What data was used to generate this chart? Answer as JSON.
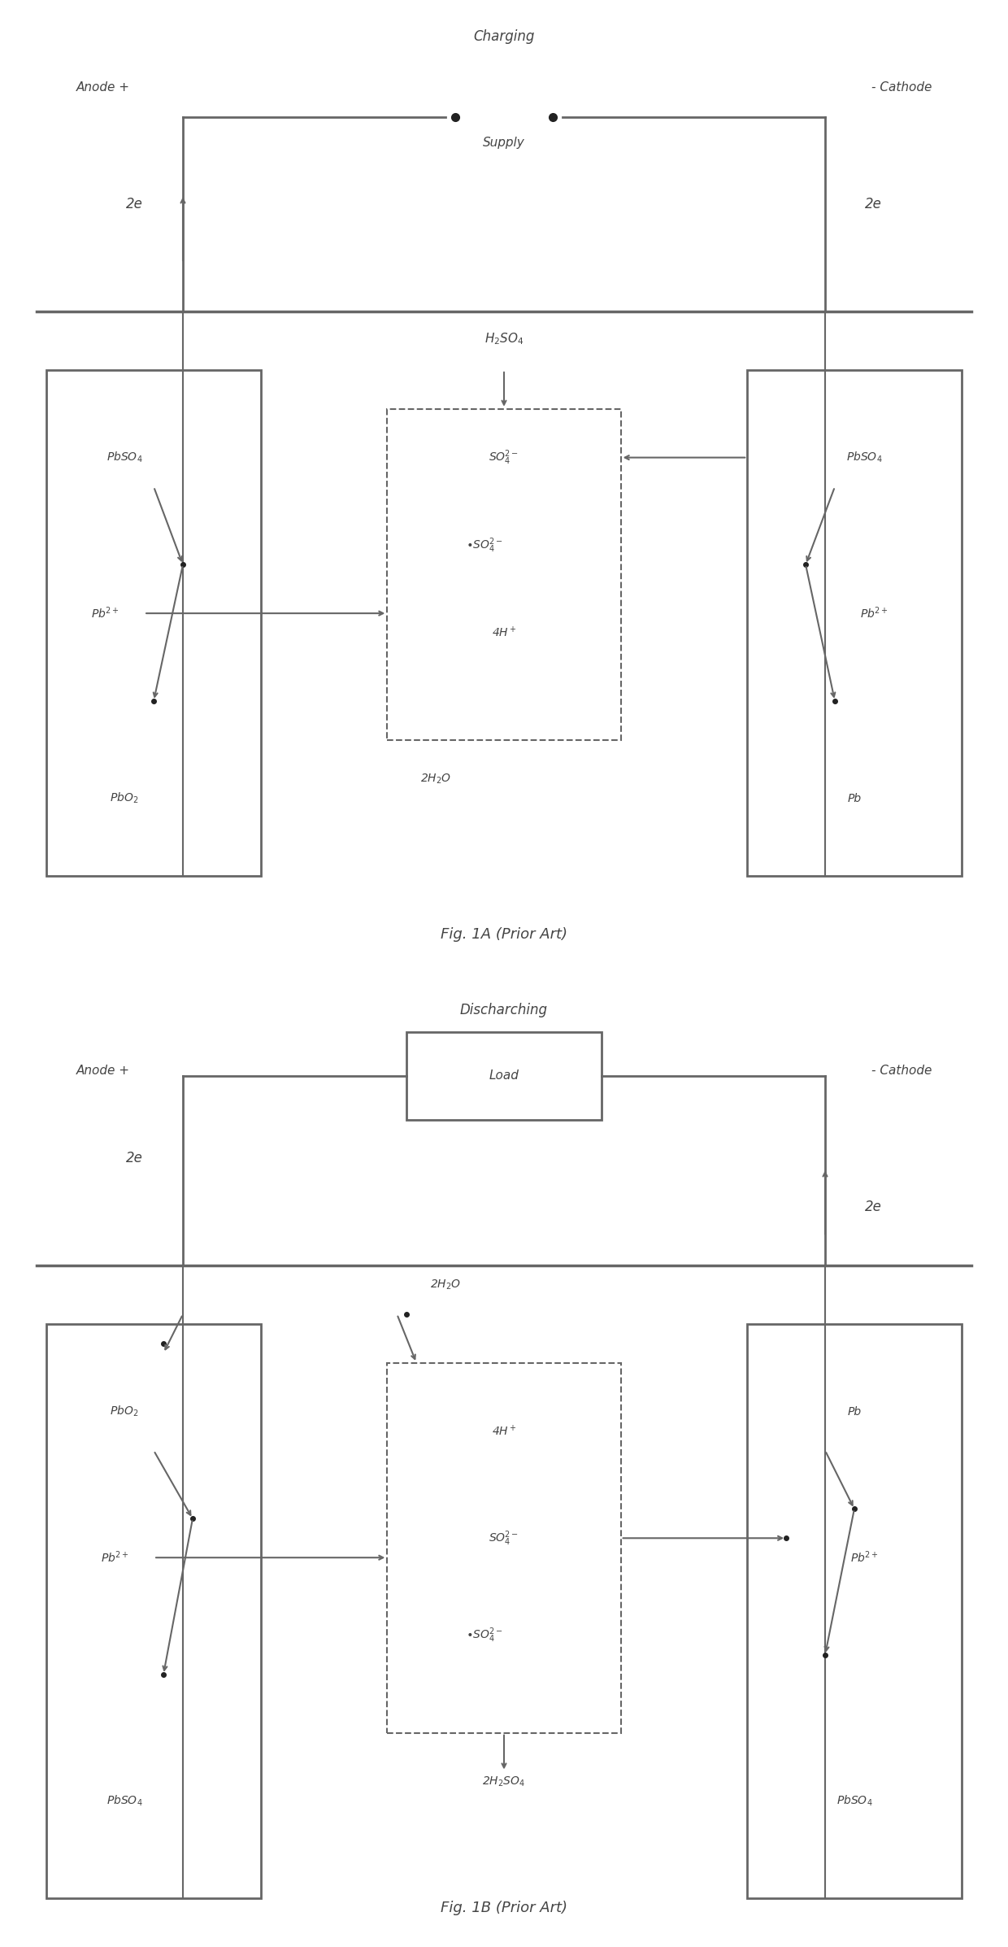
{
  "fig_width": 12.4,
  "fig_height": 23.94,
  "bg_color": "#ffffff",
  "line_color": "#666666",
  "text_color": "#444444",
  "fig1A": {
    "title": "Charging",
    "label_left": "Anode +",
    "label_right": "- Cathode",
    "supply_label": "Supply",
    "electrons_left": "2e",
    "electrons_right": "2e",
    "h2so4_label": "H₂SO₄",
    "so4_1": "SO₄²⁻",
    "so4_2": "•SO₄²⁻",
    "h4": "4H⁺",
    "h2o": "2H₂O",
    "left_1": "PbSO₄",
    "left_2": "Pb²⁺",
    "left_3": "PbO₂",
    "right_1": "PbSO₄",
    "right_2": "Pb²⁺",
    "right_3": "Pb",
    "fig_label": "Fig. 1A (Prior Art)"
  },
  "fig1B": {
    "title": "Discharching",
    "label_left": "Anode +",
    "label_right": "- Cathode",
    "load_label": "Load",
    "electrons_left": "2e",
    "electrons_right": "2e",
    "h2o_top": "2H₂O",
    "h4": "4H⁺",
    "so4_1": "SO₄²⁻",
    "so4_2": "•SO₄²⁻",
    "h2so4_bot": "2H₂SO₄",
    "left_1": "PbO₂",
    "left_2": "Pb²⁺",
    "left_3": "PbSO₄",
    "right_1": "Pb",
    "right_2": "Pb²⁺",
    "right_3": "PbSO₄",
    "fig_label": "Fig. 1B (Prior Art)"
  }
}
